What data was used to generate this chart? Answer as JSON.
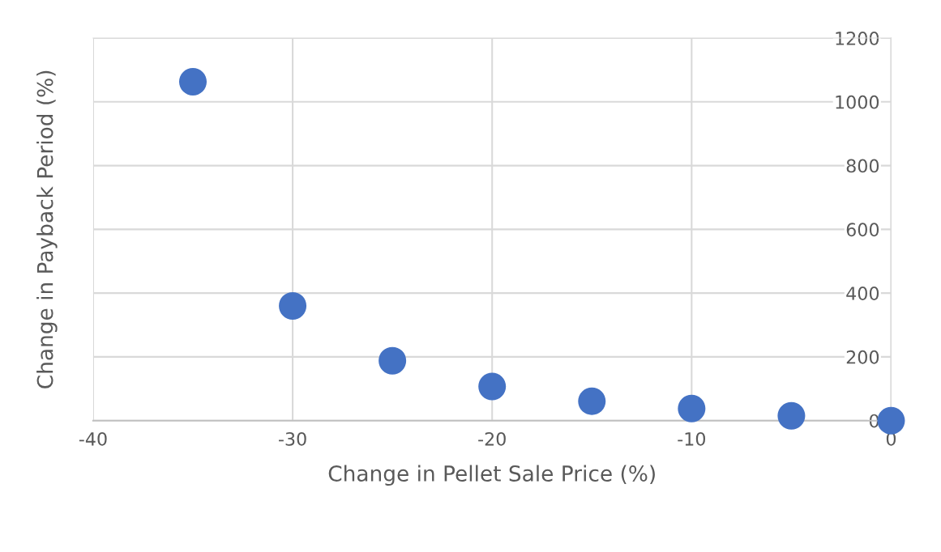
{
  "chart_data": {
    "type": "scatter",
    "xlabel": "Change in Pellet Sale Price (%)",
    "ylabel": "Change in Payback Period (%)",
    "x": [
      -35,
      -30,
      -25,
      -20,
      -15,
      -10,
      -5,
      0
    ],
    "series": [
      {
        "color": "#4472c4",
        "values": [
          1063,
          360,
          188,
          107,
          61,
          38,
          15,
          0
        ]
      }
    ],
    "xlim": [
      -40,
      0
    ],
    "xticks": [
      -40,
      -30,
      -20,
      -10,
      0
    ],
    "ylim": [
      0,
      1200
    ],
    "yticks": [
      0,
      200,
      400,
      600,
      800,
      1000,
      1200
    ],
    "grid": true,
    "marker": "circle"
  }
}
